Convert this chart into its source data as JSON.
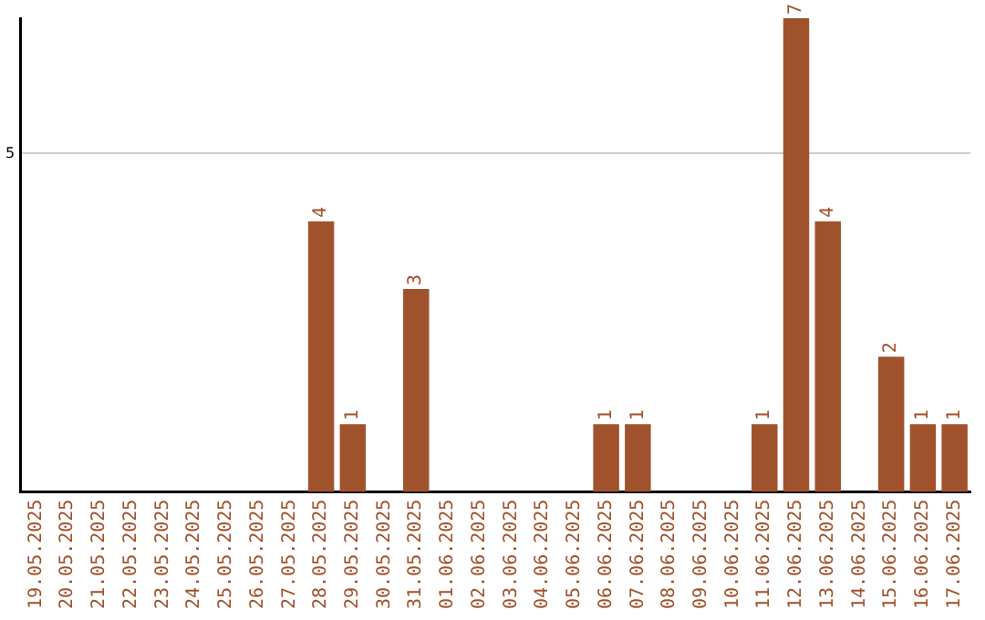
{
  "chart_data": {
    "type": "bar",
    "categories": [
      "19.05.2025",
      "20.05.2025",
      "21.05.2025",
      "22.05.2025",
      "23.05.2025",
      "24.05.2025",
      "25.05.2025",
      "26.05.2025",
      "27.05.2025",
      "28.05.2025",
      "29.05.2025",
      "30.05.2025",
      "31.05.2025",
      "01.06.2025",
      "02.06.2025",
      "03.06.2025",
      "04.06.2025",
      "05.06.2025",
      "06.06.2025",
      "07.06.2025",
      "08.06.2025",
      "09.06.2025",
      "10.06.2025",
      "11.06.2025",
      "12.06.2025",
      "13.06.2025",
      "14.06.2025",
      "15.06.2025",
      "16.06.2025",
      "17.06.2025"
    ],
    "values": [
      0,
      0,
      0,
      0,
      0,
      0,
      0,
      0,
      0,
      4,
      1,
      0,
      3,
      0,
      0,
      0,
      0,
      0,
      1,
      1,
      0,
      0,
      0,
      1,
      7,
      4,
      0,
      2,
      1,
      1
    ],
    "value_labels": [
      null,
      null,
      null,
      null,
      null,
      null,
      null,
      null,
      null,
      "4",
      "1",
      null,
      "3",
      null,
      null,
      null,
      null,
      null,
      "1",
      "1",
      null,
      null,
      null,
      "1",
      "7",
      "4",
      null,
      "2",
      "1",
      "1"
    ],
    "color": "#a0522d",
    "ylim": [
      0,
      7
    ],
    "yticks": [
      5
    ],
    "grid": "y",
    "legend": false
  }
}
